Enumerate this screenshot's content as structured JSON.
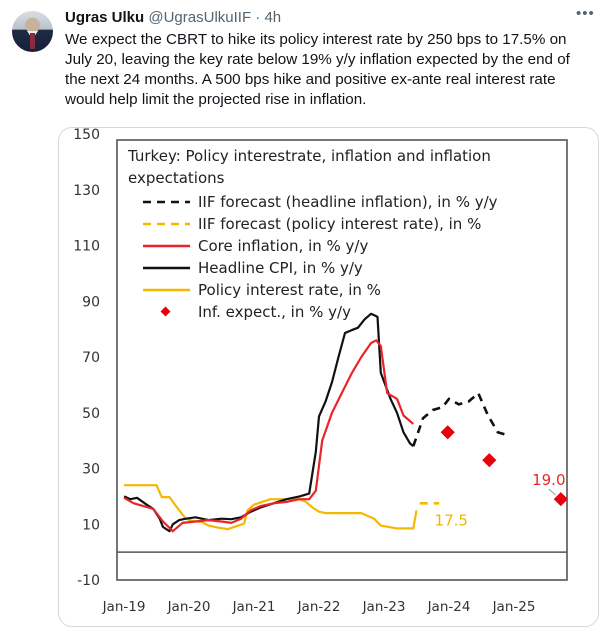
{
  "tweet": {
    "author_name": "Ugras Ulku",
    "handle": "@UgrasUlkuIIF",
    "separator": "·",
    "time": "4h",
    "more_icon": "more-icon",
    "text_lines": [
      "We expect the CBRT to hike its policy interest rate by 250 bps to 17.5% on",
      "July 20, leaving the key rate below 19% y/y inflation expected by the end of",
      "the next 24 months. A 500 bps hike and positive ex-ante real interest rate",
      "would help limit the projected rise in inflation."
    ]
  },
  "colors": {
    "headline": "#111111",
    "core": "#e8262a",
    "policy": "#f5b800",
    "expect": "#e8000b",
    "frame": "#555555",
    "label_core": "#e8262a",
    "label_policy": "#f0b400"
  },
  "chart_data": {
    "type": "line",
    "title": "Turkey: Policy interestrate, inflation and inflation expectations",
    "title_lines": [
      "Turkey: Policy interestrate, inflation and inflation",
      "expectations"
    ],
    "ylim": [
      -10,
      150
    ],
    "yticks": [
      150,
      130,
      110,
      90,
      70,
      50,
      30,
      10,
      -10
    ],
    "ytick_labels": [
      "150",
      "130",
      "110",
      "90",
      "70",
      "50",
      "30",
      "10",
      "-10"
    ],
    "xlim": [
      2019.0,
      2025.85
    ],
    "xticks": [
      2019,
      2020,
      2021,
      2022,
      2023,
      2024,
      2025
    ],
    "xtick_labels": [
      "Jan-19",
      "Jan-20",
      "Jan-21",
      "Jan-22",
      "Jan-23",
      "Jan-24",
      "Jan-25"
    ],
    "zero_line": 0,
    "legend": [
      {
        "label": "IIF forecast (headline inflation), in % y/y",
        "style": "dashed",
        "color_key": "headline"
      },
      {
        "label": "IIF forecast (policy interest rate), in %",
        "style": "dashed",
        "color_key": "policy"
      },
      {
        "label": "Core inflation, in % y/y",
        "style": "solid",
        "color_key": "core"
      },
      {
        "label": "Headline CPI, in % y/y",
        "style": "solid",
        "color_key": "headline"
      },
      {
        "label": "Policy interest rate, in %",
        "style": "solid",
        "color_key": "policy"
      },
      {
        "label": "Inf. expect., in % y/y",
        "style": "diamond",
        "color_key": "expect"
      }
    ],
    "legend_position": "top-left",
    "series": [
      {
        "name": "Policy interest rate, in %",
        "style": "solid",
        "color_key": "policy",
        "x": [
          2019.0,
          2019.5,
          2019.58,
          2019.7,
          2019.8,
          2019.95,
          2020.05,
          2020.2,
          2020.3,
          2020.45,
          2020.6,
          2020.85,
          2020.9,
          2021.0,
          2021.25,
          2021.7,
          2021.8,
          2021.9,
          2022.0,
          2022.1,
          2022.65,
          2022.85,
          2022.95,
          2023.2,
          2023.4,
          2023.45,
          2023.5
        ],
        "y": [
          24,
          24,
          19.75,
          19.75,
          16.5,
          12,
          11.25,
          10.75,
          9.5,
          8.75,
          8.25,
          10.25,
          15,
          17,
          19,
          19,
          18,
          16,
          14.5,
          14,
          14,
          12,
          9.5,
          8.5,
          8.5,
          8.5,
          15
        ]
      },
      {
        "name": "IIF forecast (policy interest rate), in %",
        "style": "dashed",
        "color_key": "policy",
        "x": [
          2023.55,
          2023.85
        ],
        "y": [
          17.5,
          17.5
        ]
      },
      {
        "name": "Headline CPI, in % y/y",
        "style": "solid",
        "color_key": "headline",
        "x": [
          2019.0,
          2019.1,
          2019.2,
          2019.35,
          2019.45,
          2019.55,
          2019.6,
          2019.7,
          2019.75,
          2019.85,
          2019.95,
          2020.1,
          2020.3,
          2020.5,
          2020.65,
          2020.8,
          2020.95,
          2021.1,
          2021.3,
          2021.5,
          2021.7,
          2021.85,
          2021.95,
          2022.0,
          2022.1,
          2022.2,
          2022.3,
          2022.4,
          2022.5,
          2022.6,
          2022.7,
          2022.8,
          2022.85,
          2022.9,
          2022.95,
          2023.1,
          2023.2,
          2023.3,
          2023.4,
          2023.45
        ],
        "y": [
          20,
          19,
          19.5,
          17,
          15.5,
          12,
          9,
          7.5,
          10,
          11.5,
          12,
          12.5,
          11.5,
          12,
          11.8,
          12.5,
          14.5,
          16,
          17.5,
          19,
          20,
          21,
          36,
          48.7,
          54,
          61,
          70,
          78.6,
          79.6,
          80.5,
          83.5,
          85.5,
          85,
          84.4,
          64.3,
          55,
          50,
          43,
          39,
          38
        ]
      },
      {
        "name": "Core inflation, in % y/y",
        "style": "solid",
        "color_key": "core",
        "x": [
          2019.0,
          2019.15,
          2019.3,
          2019.45,
          2019.6,
          2019.75,
          2019.9,
          2020.1,
          2020.3,
          2020.5,
          2020.65,
          2020.8,
          2020.95,
          2021.1,
          2021.3,
          2021.5,
          2021.7,
          2021.85,
          2021.95,
          2022.05,
          2022.2,
          2022.35,
          2022.5,
          2022.65,
          2022.8,
          2022.88,
          2022.95,
          2023.05,
          2023.2,
          2023.3,
          2023.45
        ],
        "y": [
          19.5,
          17.5,
          16.5,
          15.5,
          11,
          7.5,
          10.5,
          11,
          11.5,
          11,
          10.5,
          12,
          15,
          16.5,
          17.5,
          18,
          19,
          19,
          22,
          40,
          50,
          57,
          64,
          70,
          75,
          76,
          74,
          57,
          55,
          49,
          46
        ]
      },
      {
        "name": "IIF forecast (headline inflation), in % y/y",
        "style": "dashed",
        "color_key": "headline",
        "x": [
          2023.45,
          2023.6,
          2023.75,
          2023.9,
          2024.0,
          2024.15,
          2024.3,
          2024.45,
          2024.6,
          2024.75,
          2024.9
        ],
        "y": [
          38,
          48,
          51,
          52,
          55,
          53,
          54,
          57,
          49,
          43,
          42
        ]
      },
      {
        "name": "Inf. expect., in % y/y",
        "style": "markers",
        "color_key": "expect",
        "x": [
          2023.98,
          2024.62,
          2025.72
        ],
        "y": [
          43,
          33,
          19.0
        ]
      }
    ],
    "annotations": [
      {
        "text": "17.5",
        "series": "IIF forecast (policy interest rate), in %",
        "color_key": "label_policy"
      },
      {
        "text": "19.0",
        "series": "Inf. expect., in % y/y",
        "color_key": "label_core"
      }
    ]
  }
}
